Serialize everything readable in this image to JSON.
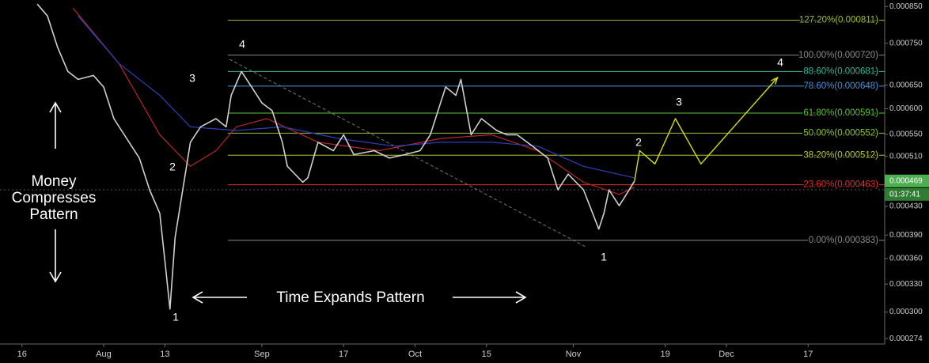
{
  "chart_data": {
    "type": "line",
    "log_scale": true,
    "xlim": [
      -4.3,
      169
    ],
    "ylim": [
      0.000269,
      0.000869
    ],
    "xticks": [
      {
        "value": 0,
        "label": "16"
      },
      {
        "value": 16,
        "label": "Aug"
      },
      {
        "value": 28,
        "label": "13"
      },
      {
        "value": 47,
        "label": "Sep"
      },
      {
        "value": 63,
        "label": "17"
      },
      {
        "value": 77,
        "label": "Oct"
      },
      {
        "value": 91,
        "label": "15"
      },
      {
        "value": 108,
        "label": "Nov"
      },
      {
        "value": 126,
        "label": "19"
      },
      {
        "value": 138,
        "label": "Dec"
      },
      {
        "value": 154,
        "label": "17"
      }
    ],
    "yticks": [
      {
        "value": 0.00085,
        "label": "0.000850"
      },
      {
        "value": 0.00075,
        "label": "0.000750"
      },
      {
        "value": 0.00065,
        "label": "0.000650"
      },
      {
        "value": 0.0006,
        "label": "0.000600"
      },
      {
        "value": 0.00055,
        "label": "0.000550"
      },
      {
        "value": 0.00051,
        "label": "0.000510"
      },
      {
        "value": 0.00043,
        "label": "0.000430"
      },
      {
        "value": 0.00039,
        "label": "0.000390"
      },
      {
        "value": 0.00036,
        "label": "0.000360"
      },
      {
        "value": 0.00033,
        "label": "0.000330"
      },
      {
        "value": 0.0003,
        "label": "0.000300"
      },
      {
        "value": 0.000274,
        "label": "0.000274"
      }
    ],
    "series": [
      {
        "color": "#cfcfcf",
        "x": [
          3,
          5,
          7,
          9,
          11,
          14,
          16,
          18,
          21,
          23,
          25,
          27,
          28,
          29,
          30,
          31,
          33,
          35,
          38,
          40,
          41,
          43,
          45,
          47,
          49,
          51,
          52,
          55,
          56,
          58,
          61,
          63,
          65,
          69,
          72,
          75,
          78,
          80,
          83,
          85,
          86,
          88,
          90,
          93,
          95,
          97,
          100,
          103,
          105,
          107,
          110,
          113,
          114,
          115,
          117,
          118,
          120
        ],
        "values": [
          0.000857,
          0.000823,
          0.000739,
          0.000681,
          0.000663,
          0.000672,
          0.000646,
          0.00058,
          0.000535,
          0.000507,
          0.000455,
          0.00042,
          0.000357,
          0.000303,
          0.000387,
          0.000431,
          0.000535,
          0.000564,
          0.00058,
          0.000564,
          0.000628,
          0.000681,
          0.000646,
          0.000612,
          0.000596,
          0.000535,
          0.000493,
          0.000467,
          0.000474,
          0.000535,
          0.00052,
          0.000549,
          0.000513,
          0.00052,
          0.000507,
          0.000513,
          0.00052,
          0.000549,
          0.000646,
          0.000628,
          0.000663,
          0.000549,
          0.00058,
          0.000557,
          0.000549,
          0.000549,
          0.000528,
          0.000507,
          0.000455,
          0.00048,
          0.000455,
          0.000398,
          0.00042,
          0.000455,
          0.000431,
          0.000443,
          0.000469
        ]
      },
      {
        "color": "#2e3fb8",
        "x": [
          11,
          19,
          27,
          33,
          42,
          51,
          62,
          73,
          82,
          92,
          101,
          110,
          120
        ],
        "values": [
          0.000823,
          0.0007,
          0.000628,
          0.000564,
          0.000557,
          0.000564,
          0.000542,
          0.000528,
          0.000535,
          0.000535,
          0.000528,
          0.000493,
          0.000474
        ]
      },
      {
        "color": "#b8262a",
        "x": [
          10,
          19,
          27,
          33,
          38,
          42,
          48,
          58,
          70,
          82,
          92,
          101,
          110,
          117,
          120
        ],
        "values": [
          0.000845,
          0.0007,
          0.000549,
          0.000493,
          0.00052,
          0.000564,
          0.00058,
          0.000535,
          0.00052,
          0.000542,
          0.000549,
          0.00052,
          0.000467,
          0.000448,
          0.000459
        ]
      }
    ],
    "fib_start_x": 40.3,
    "fib_levels": [
      {
        "value": 0.000811,
        "label": "127.20%(0.000811)",
        "color": "#9cc03a"
      },
      {
        "value": 0.00072,
        "label": "100.00%(0.000720)",
        "color": "#8a8a8a"
      },
      {
        "value": 0.000681,
        "label": "88.60%(0.000681)",
        "color": "#3fb49a"
      },
      {
        "value": 0.000648,
        "label": "78.60%(0.000648)",
        "color": "#4f8fd6"
      },
      {
        "value": 0.000591,
        "label": "61.80%(0.000591)",
        "color": "#5fbf3c"
      },
      {
        "value": 0.000552,
        "label": "50.00%(0.000552)",
        "color": "#8fc43f"
      },
      {
        "value": 0.000512,
        "label": "38.20%(0.000512)",
        "color": "#b5c93a"
      },
      {
        "value": 0.000463,
        "label": "23.60%(0.000463)",
        "color": "#e0302c"
      },
      {
        "value": 0.000383,
        "label": "0.00%(0.000383)",
        "color": "#8a8a8a"
      }
    ],
    "projection": {
      "color": "#d8d81e",
      "x": [
        120,
        121,
        124,
        128,
        133,
        148
      ],
      "values": [
        0.000469,
        0.00052,
        0.000497,
        0.00058,
        0.000497,
        0.000667
      ]
    },
    "last_price": {
      "value": 0.000469,
      "label": "0.000469"
    },
    "countdown": "01:37:41",
    "annotations": [
      "4",
      "3",
      "2",
      "1",
      "1",
      "2",
      "3",
      "4"
    ],
    "left_note": [
      "Money",
      "Compresses",
      "Pattern"
    ],
    "bottom_note": "Time Expands Pattern"
  }
}
